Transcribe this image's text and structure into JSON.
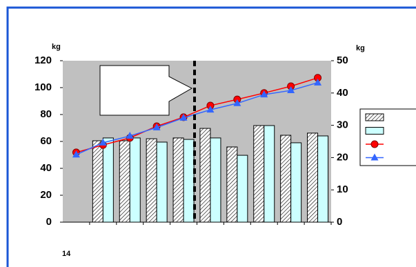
{
  "chart_data": {
    "type": "bar",
    "ylabel": "kg",
    "y2label": "kg",
    "xlabel": "14",
    "categories": [
      null,
      null,
      null,
      null,
      null,
      null,
      null,
      null,
      null,
      null
    ],
    "ylim": [
      0,
      120
    ],
    "yticks": [
      0,
      20,
      40,
      60,
      80,
      100,
      120
    ],
    "y2lim": [
      0,
      50
    ],
    "y2ticks": [
      0,
      10,
      20,
      30,
      40,
      50
    ],
    "legend": "right",
    "series": [
      {
        "type": "bar",
        "color": "#ffffff",
        "pattern": "hatch",
        "values": [
          null,
          60.5,
          60.5,
          62,
          62.6,
          69.7,
          55.9,
          71.8,
          64.6,
          66.2
        ]
      },
      {
        "type": "bar",
        "color": "#ccffff",
        "values": [
          null,
          62.6,
          62.6,
          59.5,
          61.5,
          62.6,
          49.7,
          71.8,
          59,
          64.1
        ]
      },
      {
        "type": "line",
        "axis": "y2",
        "color": "#ff0000",
        "marker": "circle",
        "values": [
          21.6,
          23.9,
          26.1,
          29.7,
          32.5,
          36.1,
          38,
          40,
          42.1,
          44.7
        ]
      },
      {
        "type": "line",
        "axis": "y2",
        "color": "#3366ff",
        "marker": "triangle",
        "values": [
          20.9,
          24.6,
          26.7,
          29.3,
          32.3,
          34.8,
          36.8,
          39.5,
          40.8,
          43.2
        ]
      }
    ]
  }
}
